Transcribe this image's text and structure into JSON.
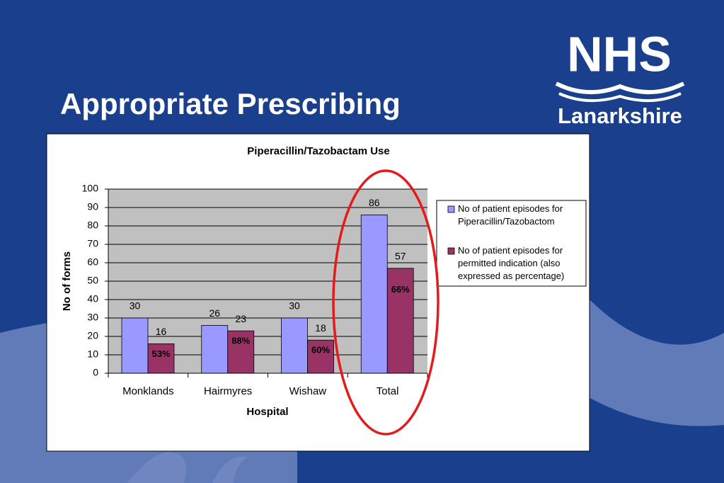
{
  "slide": {
    "title": "Appropriate Prescribing"
  },
  "logo": {
    "mark": "NHS",
    "region": "Lanarkshire"
  },
  "chart_data": {
    "type": "bar",
    "title": "Piperacillin/Tazobactam Use",
    "x_label": "Hospital",
    "y_label": "No of forms",
    "categories": [
      "Monklands",
      "Hairmyres",
      "Wishaw",
      "Total"
    ],
    "series": [
      {
        "name": "No of patient episodes for Piperacillin/Tazobactom",
        "color": "#9999ff",
        "values": [
          30,
          26,
          30,
          86
        ]
      },
      {
        "name": "No of patient episodes for permitted indication (also expressed as percentage)",
        "color": "#993366",
        "values": [
          16,
          23,
          18,
          57
        ],
        "percent_labels": [
          "53%",
          "88%",
          "60%",
          "66%"
        ]
      }
    ],
    "ylim": [
      0,
      100
    ],
    "yticks": [
      0,
      10,
      20,
      30,
      40,
      50,
      60,
      70,
      80,
      90,
      100
    ],
    "grid": true,
    "legend": "right"
  }
}
